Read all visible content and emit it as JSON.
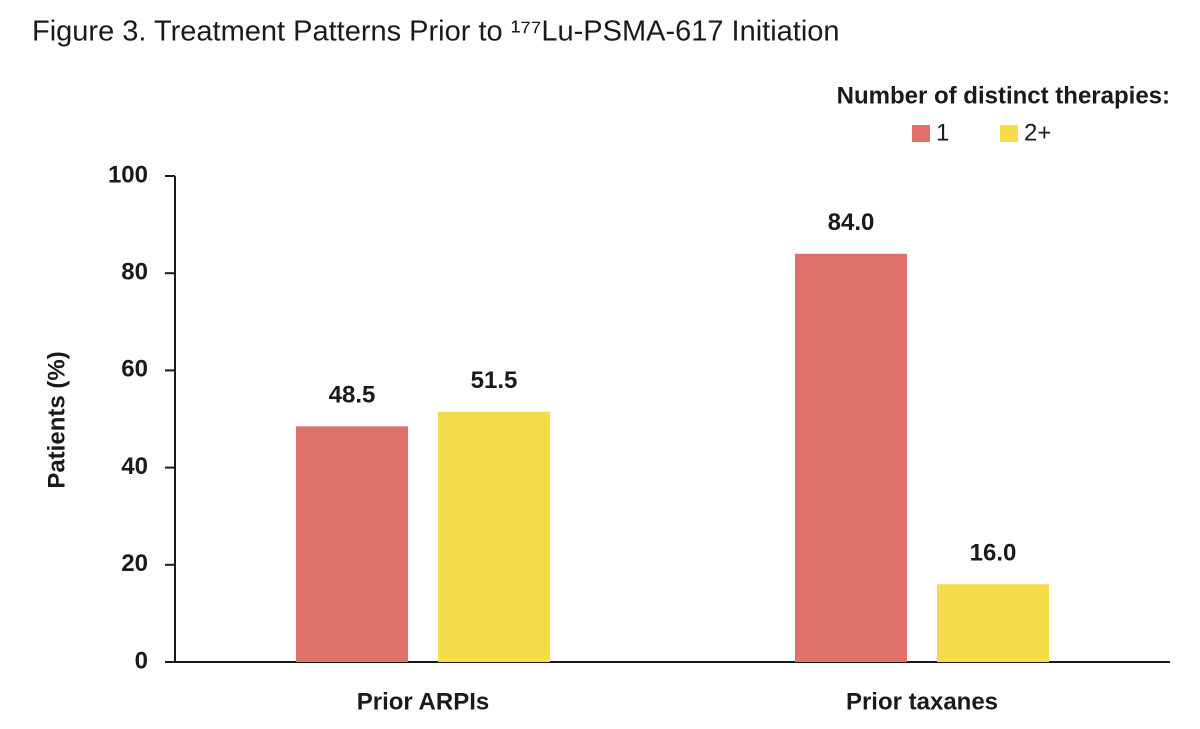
{
  "chart_data": {
    "type": "bar",
    "title": "Figure 3. Treatment Patterns Prior to ¹⁷⁷Lu-PSMA-617 Initiation",
    "y_label": "Patients (%)",
    "legend_title": "Number of distinct therapies:",
    "legend_position": "top-right",
    "categories": [
      "Prior ARPIs",
      "Prior taxanes"
    ],
    "series": [
      {
        "name": "1",
        "color": "#e0706a",
        "values": [
          48.5,
          84.0
        ],
        "value_labels": [
          "48.5",
          "84.0"
        ]
      },
      {
        "name": "2+",
        "color": "#f5dc4a",
        "values": [
          51.5,
          16.0
        ],
        "value_labels": [
          "51.5",
          "16.0"
        ]
      }
    ],
    "ylim": [
      0,
      100
    ],
    "yticks": [
      0,
      20,
      40,
      60,
      80,
      100
    ],
    "grid": false
  }
}
